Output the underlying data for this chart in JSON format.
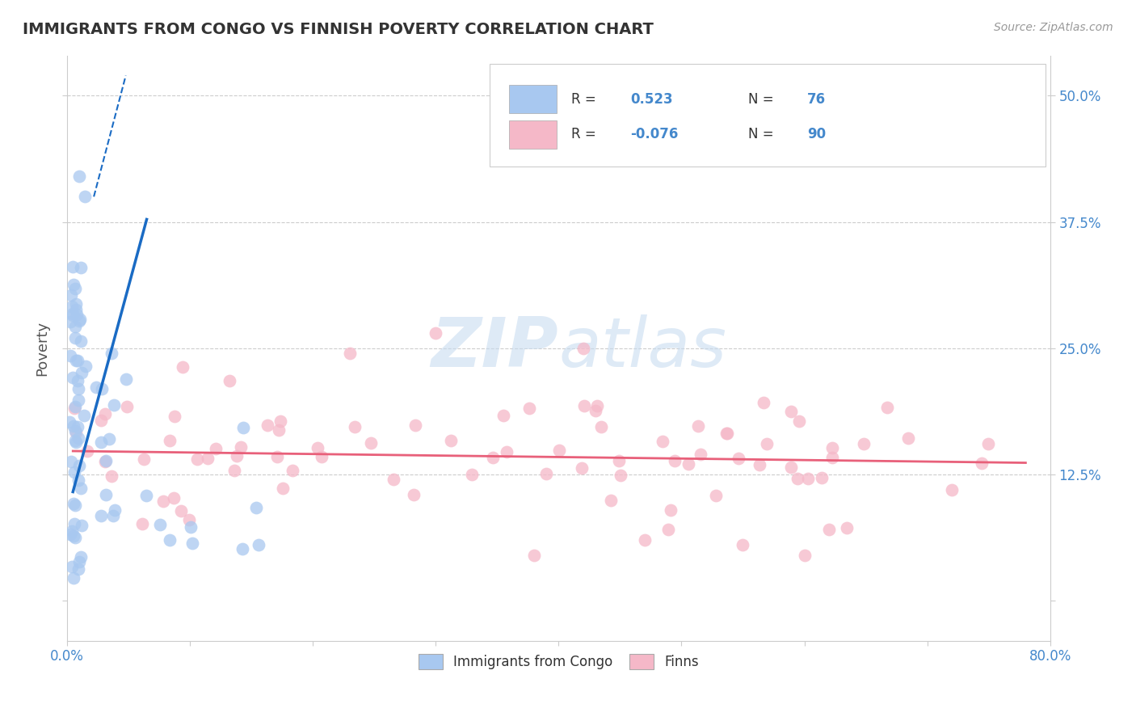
{
  "title": "IMMIGRANTS FROM CONGO VS FINNISH POVERTY CORRELATION CHART",
  "source": "Source: ZipAtlas.com",
  "ylabel": "Poverty",
  "xlim": [
    0.0,
    0.8
  ],
  "ylim": [
    -0.04,
    0.54
  ],
  "yticks": [
    0.0,
    0.125,
    0.25,
    0.375,
    0.5
  ],
  "r_blue": "0.523",
  "n_blue": "76",
  "r_pink": "-0.076",
  "n_pink": "90",
  "legend_label_blue": "Immigrants from Congo",
  "legend_label_pink": "Finns",
  "blue_fill": "#A8C8F0",
  "blue_line": "#1A6BC4",
  "pink_fill": "#F5B8C8",
  "pink_line": "#E8607A",
  "watermark": "ZIPatlas",
  "watermark_color": "#D8E8F5",
  "grid_color": "#CCCCCC",
  "axis_color": "#CCCCCC",
  "right_tick_color": "#4488CC",
  "title_color": "#333333",
  "source_color": "#999999"
}
